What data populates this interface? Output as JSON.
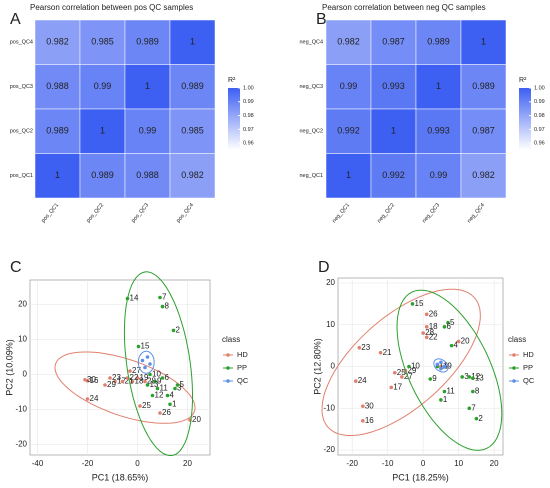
{
  "chart_data": [
    {
      "type": "heatmap",
      "panel": "A",
      "title": "Pearson correlation between pos QC samples",
      "x_categories": [
        "pos_QC1",
        "pos_QC2",
        "pos_QC3",
        "pos_QC4"
      ],
      "y_categories": [
        "pos_QC4",
        "pos_QC3",
        "pos_QC2",
        "pos_QC1"
      ],
      "values": [
        [
          0.982,
          0.985,
          0.989,
          1
        ],
        [
          0.988,
          0.99,
          1,
          0.989
        ],
        [
          0.989,
          1,
          0.99,
          0.985
        ],
        [
          1,
          0.989,
          0.988,
          0.982
        ]
      ],
      "colorbar_title": "R²",
      "zlim": [
        0.955,
        1
      ],
      "zticks": [
        {
          "value": 1,
          "label": "1.00"
        },
        0.99,
        0.98,
        0.97,
        0.96
      ],
      "colors": [
        "#ffffff",
        "#3d5ff2"
      ]
    },
    {
      "type": "heatmap",
      "panel": "B",
      "title": "Pearson correlation between neg QC samples",
      "x_categories": [
        "neg_QC1",
        "neg_QC2",
        "neg_QC3",
        "neg_QC4"
      ],
      "y_categories": [
        "neg_QC4",
        "neg_QC3",
        "neg_QC2",
        "neg_QC1"
      ],
      "values": [
        [
          0.982,
          0.987,
          0.989,
          1
        ],
        [
          0.99,
          0.993,
          1,
          0.989
        ],
        [
          0.992,
          1,
          0.993,
          0.987
        ],
        [
          1,
          0.992,
          0.99,
          0.982
        ]
      ],
      "colorbar_title": "R²",
      "zlim": [
        0.955,
        1
      ],
      "zticks": [
        {
          "value": 1,
          "label": "1.00"
        },
        0.99,
        0.98,
        0.97,
        0.96
      ],
      "colors": [
        "#ffffff",
        "#3d5ff2"
      ]
    },
    {
      "type": "scatter",
      "panel": "C",
      "x_label": "PC1 (18.65%)",
      "y_label": "PC2 (10.09%)",
      "xlim": [
        -43,
        29
      ],
      "ylim": [
        -23,
        27
      ],
      "xticks": [
        -40,
        -20,
        0,
        20
      ],
      "yticks": [
        -20,
        -10,
        0,
        10,
        20
      ],
      "grid": true,
      "legend_title": "class",
      "legend": "right",
      "series": [
        {
          "name": "HD",
          "color": "#e0806e",
          "labels": [
            "16",
            "17",
            "18",
            "19",
            "20",
            "21",
            "22",
            "23",
            "24",
            "25",
            "26",
            "27",
            "28",
            "29",
            "30"
          ],
          "x": [
            -20,
            -9,
            -2,
            0,
            21,
            -6,
            -4,
            -11,
            -20,
            1,
            9,
            -3,
            3,
            -13,
            -21
          ],
          "values": [
            -1.8,
            -2,
            -2,
            -1,
            -13,
            -2,
            -1,
            -1,
            -7,
            -9,
            -11,
            1,
            -2,
            -3,
            -1.5
          ]
        },
        {
          "name": "PP",
          "color": "#2ca02c",
          "labels": [
            "1",
            "2",
            "3",
            "4",
            "5",
            "6",
            "7",
            "8",
            "9",
            "10",
            "11",
            "12",
            "13",
            "14",
            "15"
          ],
          "x": [
            13,
            14.4,
            15,
            12,
            16,
            10,
            9,
            10,
            7,
            5,
            8,
            6,
            4,
            -4,
            0.4
          ],
          "values": [
            -8.5,
            12.6,
            -4,
            -6,
            -3,
            -1,
            22,
            19.4,
            -2,
            0,
            -4,
            -6,
            -3,
            21.7,
            8
          ]
        },
        {
          "name": "QC",
          "color": "#5b8fe8",
          "labels": [
            null,
            null,
            null,
            null
          ],
          "x": [
            2,
            4,
            3,
            5
          ],
          "values": [
            4,
            5,
            2,
            3
          ]
        }
      ]
    },
    {
      "type": "scatter",
      "panel": "D",
      "x_label": "PC1 (18.25%)",
      "y_label": "PC2 (12.80%)",
      "xlim": [
        -24,
        22.5
      ],
      "ylim": [
        -21.2,
        21.2
      ],
      "xticks": [
        -20,
        -10,
        0,
        10,
        20
      ],
      "yticks": [
        -20,
        -10,
        0,
        10,
        20
      ],
      "grid": true,
      "legend_title": "class",
      "legend": "right",
      "series": [
        {
          "name": "HD",
          "color": "#e0806e",
          "labels": [
            "16",
            "17",
            "18",
            "19",
            "20",
            "21",
            "22",
            "23",
            "24",
            "25",
            "26",
            "27",
            "28",
            "29",
            "30"
          ],
          "x": [
            -17,
            -9,
            1,
            5,
            10,
            -12,
            1,
            -18,
            -19,
            -8,
            1,
            -6,
            0,
            -5,
            -17
          ],
          "values": [
            -13,
            -5,
            9.5,
            0,
            6,
            3.3,
            7,
            4.5,
            -3.5,
            -1.5,
            12.5,
            -2.5,
            8,
            -1,
            -9.5
          ]
        },
        {
          "name": "PP",
          "color": "#2ca02c",
          "labels": [
            "1",
            "2",
            "3",
            "4",
            "5",
            "6",
            "7",
            "8",
            "9",
            "10",
            "11",
            "12",
            "13",
            "14",
            "15"
          ],
          "x": [
            5,
            15,
            11,
            8,
            7,
            6,
            13,
            14,
            2,
            -4,
            6,
            13,
            14,
            4,
            -3
          ],
          "values": [
            -8,
            -12.5,
            -2.5,
            5,
            10.5,
            9.5,
            -10,
            -6,
            -3,
            0,
            -6,
            -2.5,
            -2.8,
            0,
            15
          ]
        },
        {
          "name": "QC",
          "color": "#5b8fe8",
          "labels": [
            null,
            null,
            null,
            null
          ],
          "x": [
            4,
            5,
            6,
            5
          ],
          "values": [
            0.5,
            1,
            0,
            -0.5
          ]
        }
      ]
    }
  ]
}
